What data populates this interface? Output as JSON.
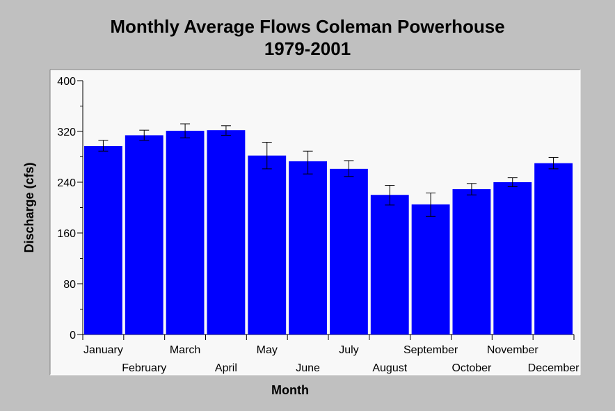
{
  "chart_data": {
    "type": "bar",
    "title": "Monthly Average Flows Coleman Powerhouse",
    "subtitle": "1979-2001",
    "xlabel": "Month",
    "ylabel": "Discharge (cfs)",
    "ylim": [
      0,
      400
    ],
    "yticks": [
      0,
      80,
      160,
      240,
      320,
      400
    ],
    "categories": [
      "January",
      "February",
      "March",
      "April",
      "May",
      "June",
      "July",
      "August",
      "September",
      "October",
      "November",
      "December"
    ],
    "values": [
      297,
      314,
      321,
      322,
      282,
      273,
      261,
      220,
      205,
      229,
      240,
      270
    ],
    "error_low": [
      289,
      306,
      310,
      314,
      261,
      253,
      249,
      204,
      186,
      220,
      233,
      261
    ],
    "error_high": [
      306,
      322,
      332,
      329,
      303,
      289,
      274,
      235,
      223,
      238,
      247,
      279
    ],
    "grid": false,
    "legend": "none",
    "colors": {
      "bar": "#0000ff",
      "plot_bg": "#f8f8f8",
      "page_bg": "#c0c0c0"
    }
  }
}
